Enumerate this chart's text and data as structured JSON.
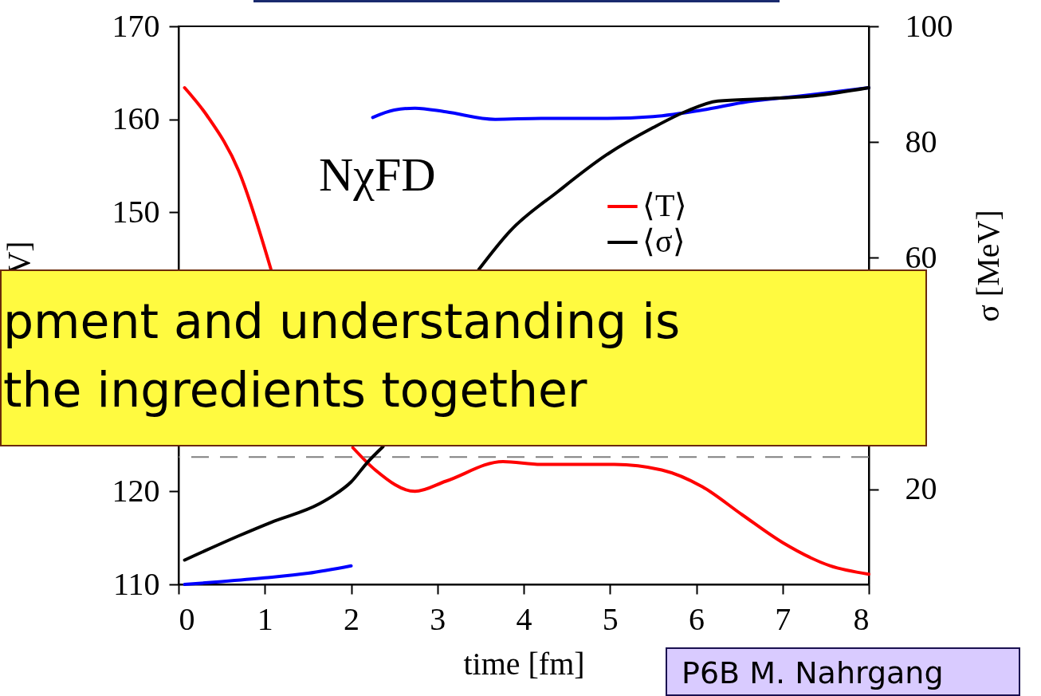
{
  "chart_data": {
    "type": "line",
    "xlabel": "time [fm]",
    "ylabel": "V]",
    "y2label": "σ [MeV]",
    "xlim": [
      0,
      8
    ],
    "xticks": [
      0,
      1,
      2,
      3,
      4,
      5,
      6,
      7,
      8
    ],
    "ylim": [
      110,
      170
    ],
    "yticks": [
      110,
      120,
      150,
      160,
      170
    ],
    "y2lim": [
      3.6,
      100
    ],
    "y2ticks": [
      20,
      {
        "value": 40,
        "label": null
      },
      60,
      80,
      100
    ],
    "legend": "right",
    "line_style": "solid",
    "series": [
      {
        "name": "⟨T⟩",
        "color": "#ff0000",
        "x": [
          0.07,
          0.33,
          0.7,
          1.07,
          1.5,
          2.02,
          2.28,
          2.74,
          3.1,
          3.76,
          4.2,
          5.05,
          5.6,
          6.07,
          6.53,
          7.0,
          7.55,
          8.0
        ],
        "values": [
          163.4,
          160.4,
          154.4,
          143.9,
          null,
          124.7,
          122.3,
          120.0,
          121.1,
          123.2,
          122.9,
          122.9,
          122.3,
          120.5,
          117.5,
          114.5,
          112.0,
          111.1
        ]
      },
      {
        "name": "⟨σ⟩",
        "color": "#000000",
        "axis": "y2",
        "x": [
          0.07,
          0.7,
          1.07,
          1.63,
          1.8,
          2.0,
          2.19,
          2.37,
          3.0,
          3.48,
          3.84,
          4.4,
          4.95,
          5.5,
          5.88,
          6.25,
          6.8,
          7.36,
          8.0
        ],
        "values": [
          7.8,
          12.0,
          14.3,
          17.5,
          19.0,
          21.3,
          24.7,
          27.4,
          null,
          58.0,
          64.6,
          71.5,
          77.7,
          82.5,
          85.3,
          87.1,
          87.5,
          88.0,
          89.4
        ]
      },
      {
        "color": "#0000ff",
        "x": [
          0.07,
          0.5,
          1.0,
          1.5,
          2.0,
          2.1,
          2.25,
          2.5,
          2.74,
          3.1,
          3.67,
          4.2,
          4.95,
          5.5,
          6.07,
          6.6,
          7.2,
          8.0
        ],
        "values": [
          110.0,
          110.3,
          110.7,
          111.2,
          112.0,
          null,
          160.2,
          161.0,
          161.2,
          160.8,
          160.0,
          160.1,
          160.1,
          160.3,
          161.0,
          161.9,
          162.5,
          163.4
        ]
      }
    ],
    "ref_lines": [
      {
        "axis": "y",
        "value": 123.7,
        "color": "#808080",
        "line_style": "dashed"
      }
    ],
    "annotations": [
      "NχFD",
      "pment and understanding is",
      "the ingredients together",
      "P6B M. Nahrgang"
    ]
  }
}
